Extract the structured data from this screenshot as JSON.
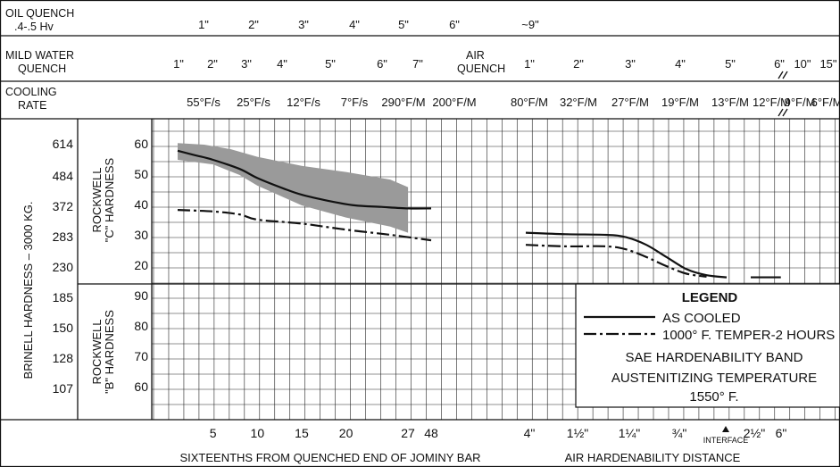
{
  "header_rows": {
    "oil_quench": {
      "label_lines": [
        "OIL QUENCH",
        ".4-.5 Hv"
      ],
      "ticks": [
        "1\"",
        "2\"",
        "3\"",
        "4\"",
        "5\"",
        "6\"",
        "~9\""
      ]
    },
    "mild_water_quench": {
      "label_lines": [
        "MILD WATER",
        "QUENCH"
      ],
      "ticks": [
        "1\"",
        "2\"",
        "3\"",
        "4\"",
        "5\"",
        "6\"",
        "7\""
      ],
      "air_quench_label_lines": [
        "AIR",
        "QUENCH"
      ],
      "air_ticks": [
        "1\"",
        "2\"",
        "3\"",
        "4\"",
        "5\"",
        "6\"",
        "10\"",
        "15\""
      ]
    },
    "cooling_rate": {
      "label_lines": [
        "COOLING",
        "RATE"
      ],
      "left_ticks": [
        "55°F/s",
        "25°F/s",
        "12°F/s",
        "7°F/s",
        "290°F/M",
        "200°F/M"
      ],
      "right_ticks": [
        "80°F/M",
        "32°F/M",
        "27°F/M",
        "19°F/M",
        "13°F/M",
        "12°F/M",
        "9°F/M",
        "6°F/M"
      ]
    }
  },
  "left_labels": {
    "brinell": "BRINELL HARDNESS – 3000 KG.",
    "rockwell_c_lines": [
      "ROCKWELL",
      "\"C\" HARDNESS"
    ],
    "rockwell_b_lines": [
      "ROCKWELL",
      "\"B\" HARDNESS"
    ]
  },
  "chart_data": {
    "type": "line",
    "rockwell_c_ticks": [
      60,
      50,
      40,
      30,
      20
    ],
    "rockwell_b_ticks": [
      90,
      80,
      70,
      60
    ],
    "brinell_ticks": [
      614,
      484,
      372,
      283,
      230,
      185,
      150,
      128,
      107
    ],
    "jominy_axis": {
      "label": "SIXTEENTHS FROM QUENCHED END OF JOMINY BAR",
      "ticks": [
        "5",
        "10",
        "15",
        "20",
        "27",
        "48"
      ],
      "tick_positions": [
        5,
        10,
        15,
        20,
        27,
        48
      ]
    },
    "air_axis": {
      "label": "AIR HARDENABILITY DISTANCE",
      "ticks": [
        "4\"",
        "1½\"",
        "1¼\"",
        "¾\"",
        "2½\"",
        "6\""
      ],
      "interface_label": "INTERFACE"
    },
    "series": [
      {
        "name": "AS COOLED",
        "style": "solid",
        "jominy": [
          [
            1,
            58
          ],
          [
            3,
            56.5
          ],
          [
            5,
            55
          ],
          [
            8,
            52
          ],
          [
            10,
            49
          ],
          [
            13,
            45.5
          ],
          [
            15,
            43.5
          ],
          [
            18,
            41.5
          ],
          [
            21,
            40
          ],
          [
            24,
            39.5
          ],
          [
            27,
            39
          ],
          [
            30,
            39
          ]
        ],
        "air": [
          [
            0,
            31
          ],
          [
            2,
            30.5
          ],
          [
            4,
            30.3
          ],
          [
            5,
            29.5
          ],
          [
            6,
            27
          ],
          [
            7,
            23
          ],
          [
            8,
            19
          ],
          [
            9,
            17
          ],
          [
            10,
            16.3
          ]
        ]
      },
      {
        "name": "1000° F. TEMPER-2 HOURS",
        "style": "dash-dot",
        "jominy": [
          [
            1,
            38.5
          ],
          [
            5,
            38
          ],
          [
            8,
            37
          ],
          [
            10,
            35.3
          ],
          [
            15,
            34
          ],
          [
            20,
            32
          ],
          [
            25,
            30.3
          ],
          [
            30,
            28.5
          ]
        ],
        "air": [
          [
            0,
            27
          ],
          [
            2,
            26.5
          ],
          [
            4,
            26.5
          ],
          [
            5,
            25.5
          ],
          [
            6,
            23
          ],
          [
            7,
            20
          ],
          [
            8,
            17.5
          ],
          [
            9,
            16.5
          ]
        ]
      }
    ],
    "air_as_cooled_extra": [
      [
        11.2,
        16.3
      ],
      [
        12.7,
        16.3
      ]
    ],
    "hardenability_band": {
      "name": "SAE HARDENABILITY BAND",
      "upper": [
        [
          1,
          60.5
        ],
        [
          4,
          60
        ],
        [
          7,
          58.5
        ],
        [
          10,
          56
        ],
        [
          15,
          53
        ],
        [
          20,
          51
        ],
        [
          25,
          48.5
        ],
        [
          27,
          46
        ]
      ],
      "lower": [
        [
          1,
          55
        ],
        [
          5,
          53.5
        ],
        [
          8,
          50
        ],
        [
          10,
          46.5
        ],
        [
          15,
          40
        ],
        [
          20,
          36
        ],
        [
          25,
          33
        ],
        [
          27,
          31
        ]
      ]
    },
    "legend": {
      "title": "LEGEND",
      "as_cooled": "AS COOLED",
      "temper": "1000° F. TEMPER-2 HOURS",
      "band": "SAE HARDENABILITY BAND",
      "austenitizing": "AUSTENITIZING TEMPERATURE",
      "temperature": "1550° F."
    },
    "grid": true
  }
}
